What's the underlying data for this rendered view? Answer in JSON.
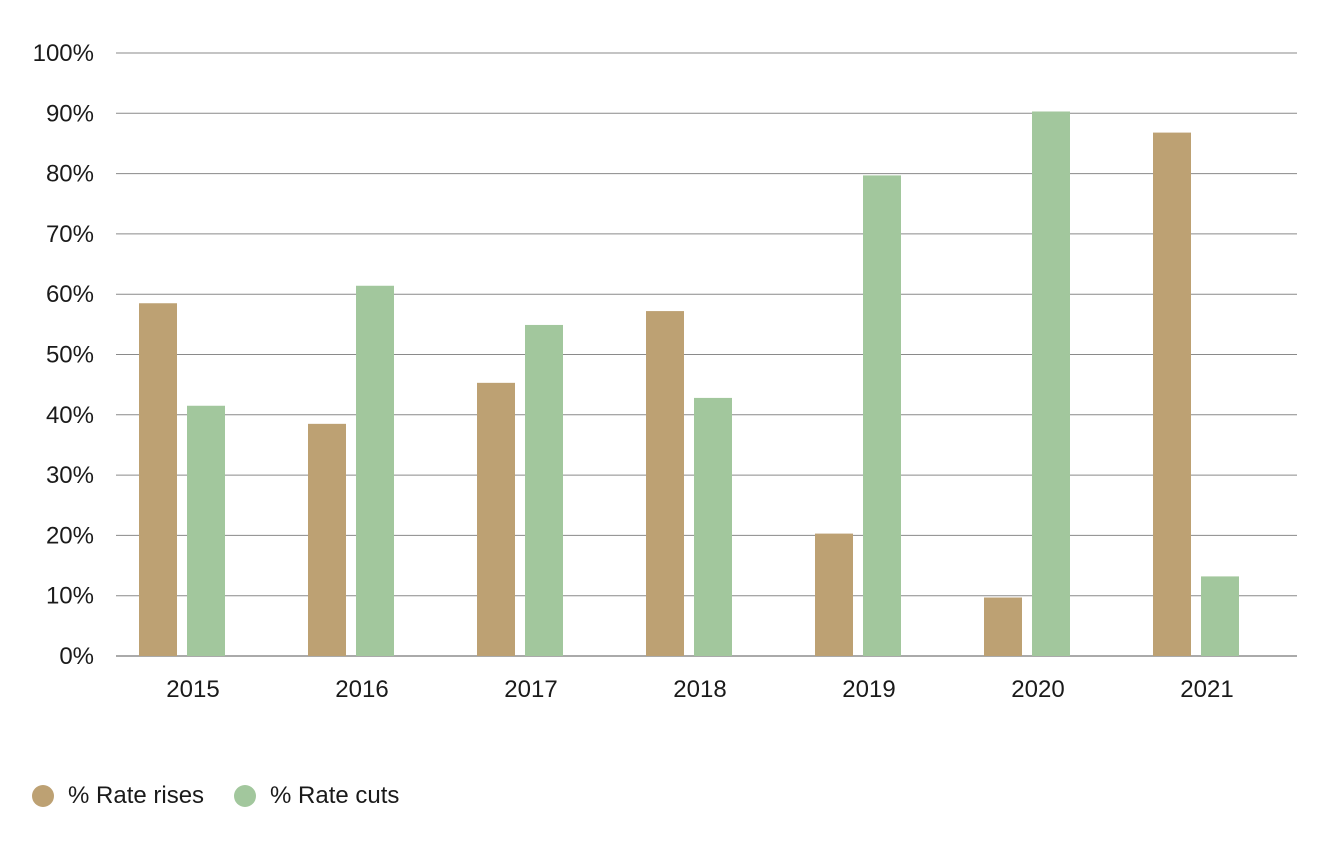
{
  "chart_data": {
    "type": "bar",
    "title": "",
    "xlabel": "",
    "ylabel": "",
    "categories": [
      "2015",
      "2016",
      "2017",
      "2018",
      "2019",
      "2020",
      "2021"
    ],
    "ylim": [
      0,
      100
    ],
    "yticks": [
      "0%",
      "10%",
      "20%",
      "30%",
      "40%",
      "50%",
      "60%",
      "70%",
      "80%",
      "90%",
      "100%"
    ],
    "y_unit": "%",
    "grid": "horizontal",
    "legend_position": "bottom-left",
    "series": [
      {
        "name": "% Rate rises",
        "color": "#bda173",
        "values": [
          58.5,
          38.5,
          45.3,
          57.2,
          20.3,
          9.7,
          86.8
        ]
      },
      {
        "name": "% Rate cuts",
        "color": "#a2c79d",
        "values": [
          41.5,
          61.4,
          54.9,
          42.8,
          79.7,
          90.3,
          13.2
        ]
      }
    ]
  }
}
